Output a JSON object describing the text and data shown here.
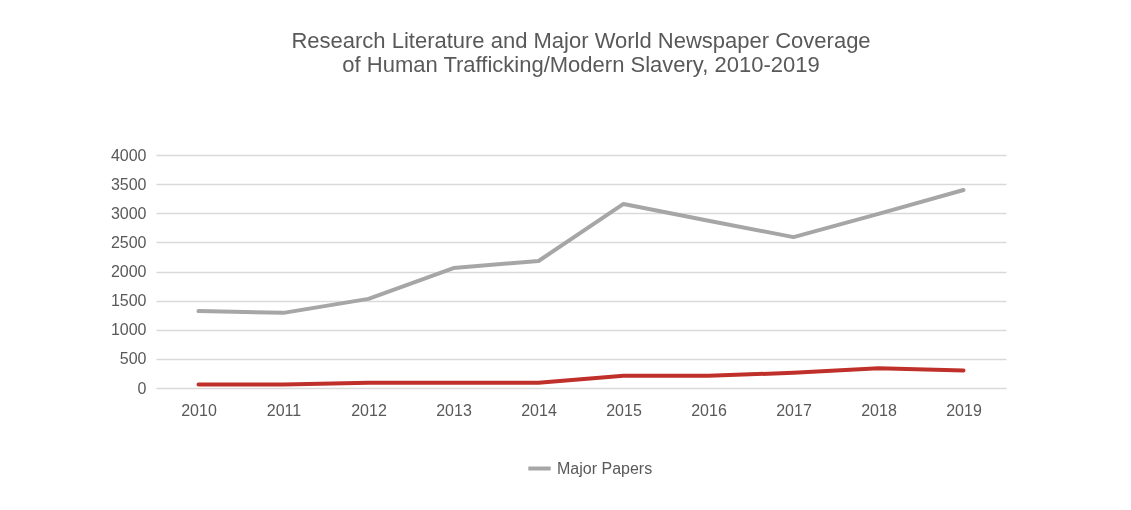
{
  "chart_data": {
    "type": "line",
    "title": "Research Literature and Major World Newspaper Coverage of Human Trafficking/Modern Slavery, 2010-2019",
    "categories": [
      "2010",
      "2011",
      "2012",
      "2013",
      "2014",
      "2015",
      "2016",
      "2017",
      "2018",
      "2019"
    ],
    "series": [
      {
        "color": "#c0302a",
        "values": [
          60,
          60,
          90,
          90,
          90,
          210,
          210,
          260,
          340,
          300
        ]
      },
      {
        "name": "Major Papers",
        "color": "#a6a6a6",
        "values": [
          1320,
          1290,
          1530,
          2060,
          2180,
          3160,
          2870,
          2590,
          2990,
          3400
        ]
      }
    ],
    "ylim": [
      0,
      4000
    ],
    "yticks": [
      0,
      500,
      1000,
      1500,
      2000,
      2500,
      3000,
      3500,
      4000
    ],
    "grid": "y",
    "legend": "bottom",
    "marker": "none",
    "line_style": "solid"
  }
}
